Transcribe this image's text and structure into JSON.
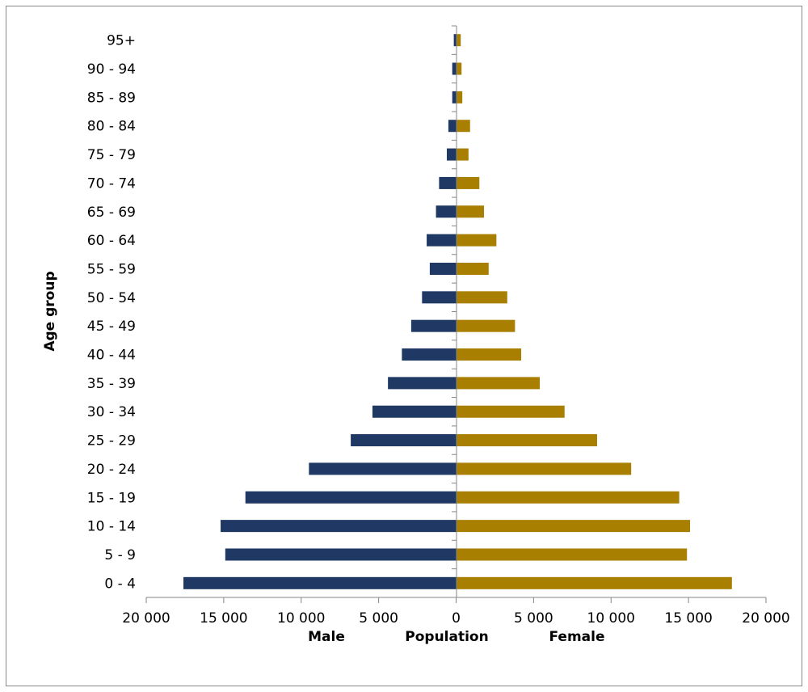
{
  "chart_data": {
    "type": "bar",
    "orientation": "horizontal",
    "categories": [
      "0 - 4",
      "5 - 9",
      "10 - 14",
      "15 - 19",
      "20 - 24",
      "25 - 29",
      "30 - 34",
      "35 - 39",
      "40 - 44",
      "45 - 49",
      "50 - 54",
      "55 - 59",
      "60 - 64",
      "65 - 69",
      "70 - 74",
      "75 - 79",
      "80 - 84",
      "85 - 89",
      "90 - 94",
      "95+"
    ],
    "series": [
      {
        "name": "Male",
        "color": "#1f3864",
        "values": [
          17600,
          14900,
          15200,
          13600,
          9500,
          6800,
          5400,
          4400,
          3500,
          2900,
          2200,
          1700,
          1900,
          1300,
          1100,
          600,
          500,
          250,
          250,
          150
        ]
      },
      {
        "name": "Female",
        "color": "#a87f00",
        "values": [
          17800,
          14900,
          15100,
          14400,
          11300,
          9100,
          7000,
          5400,
          4200,
          3800,
          3300,
          2100,
          2600,
          1800,
          1500,
          800,
          900,
          400,
          350,
          300
        ]
      }
    ],
    "xlim": [
      -20000,
      20000
    ],
    "x_ticks": [
      -20000,
      -15000,
      -10000,
      -5000,
      0,
      5000,
      10000,
      15000,
      20000
    ],
    "x_tick_labels": [
      "20 000",
      "15 000",
      "10 000",
      "5 000",
      "0",
      "5 000",
      "10 000",
      "15 000",
      "20 000"
    ],
    "xlabel": "Population",
    "xlabel_left": "Male",
    "xlabel_right": "Female",
    "ylabel": "Age group",
    "legend": "none",
    "grid": false
  }
}
